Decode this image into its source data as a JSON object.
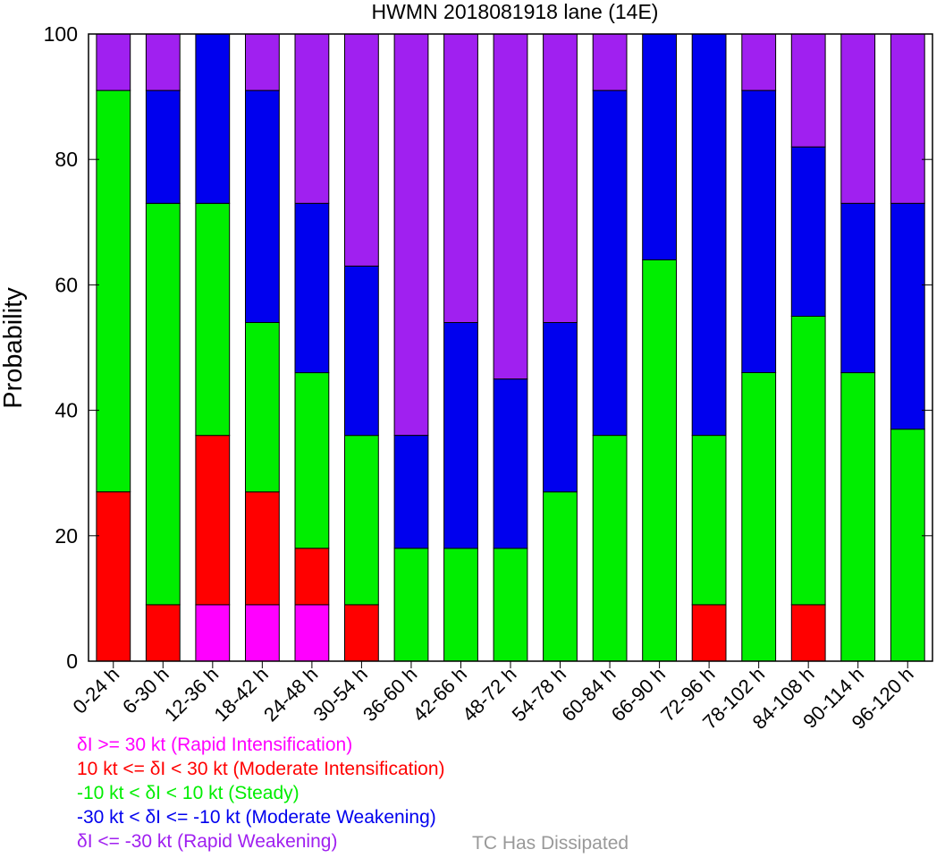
{
  "chart_data": {
    "type": "bar",
    "stacked": true,
    "title": "HWMN 2018081918 lane (14E)",
    "xlabel": "",
    "ylabel": "Probability",
    "ylim": [
      0,
      100
    ],
    "yticks": [
      0,
      20,
      40,
      60,
      80,
      100
    ],
    "grid": false,
    "categories": [
      "0-24 h",
      "6-30 h",
      "12-36 h",
      "18-42 h",
      "24-48 h",
      "30-54 h",
      "36-60 h",
      "42-66 h",
      "48-72 h",
      "54-78 h",
      "60-84 h",
      "66-90 h",
      "72-96 h",
      "78-102 h",
      "84-108 h",
      "90-114 h",
      "96-120 h"
    ],
    "series": [
      {
        "name": "δI >= 30 kt (Rapid Intensification)",
        "color": "#ff00ff",
        "values": [
          0,
          0,
          9,
          9,
          9,
          0,
          0,
          0,
          0,
          0,
          0,
          0,
          0,
          0,
          0,
          0,
          0
        ]
      },
      {
        "name": "10 kt <= δI < 30 kt (Moderate Intensification)",
        "color": "#ff0000",
        "values": [
          27,
          9,
          27,
          18,
          9,
          9,
          0,
          0,
          0,
          0,
          0,
          0,
          9,
          0,
          9,
          0,
          0
        ]
      },
      {
        "name": "-10 kt < δI < 10 kt (Steady)",
        "color": "#00ee00",
        "values": [
          64,
          64,
          37,
          27,
          28,
          27,
          18,
          18,
          18,
          27,
          36,
          64,
          27,
          46,
          46,
          46,
          37
        ]
      },
      {
        "name": "-30 kt < δI <= -10 kt (Moderate Weakening)",
        "color": "#0000ee",
        "values": [
          0,
          18,
          27,
          37,
          27,
          27,
          18,
          36,
          27,
          27,
          55,
          36,
          64,
          45,
          27,
          27,
          36
        ]
      },
      {
        "name": "δI <= -30 kt (Rapid Weakening)",
        "color": "#a020f0",
        "values": [
          9,
          9,
          0,
          9,
          27,
          37,
          64,
          46,
          55,
          46,
          9,
          0,
          0,
          9,
          18,
          27,
          27
        ]
      }
    ],
    "extra_legend": {
      "name": "TC Has Dissipated",
      "color": "#999999"
    }
  }
}
